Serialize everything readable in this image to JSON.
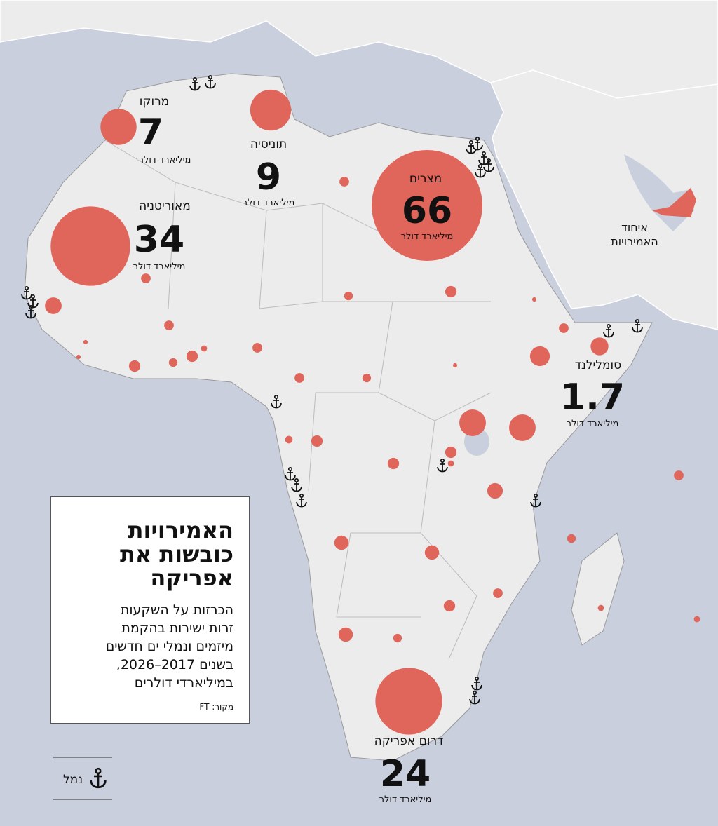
{
  "title_lines": [
    "האמירויות",
    "כובשות את",
    "אפריקה"
  ],
  "description_lines": [
    "הכרזות על השקעות",
    "זרות ישירות בהקמת",
    "מיזמים ונמלי ים חדשים",
    "בשנים 2017–2026,",
    "במיליארדי דולרים"
  ],
  "source": "מקור: FT",
  "legend_port": "נמל",
  "uae_label_lines": [
    "איחוד",
    "האמירויות"
  ],
  "countries": [
    {
      "name": "מרוקו",
      "value": 7,
      "unit": "מיליארד דולר"
    },
    {
      "name": "תוניסיה",
      "value": 9,
      "unit": "מיליארד דולר"
    },
    {
      "name": "מצרים",
      "value": 66,
      "unit": "מיליארד דולר"
    },
    {
      "name": "מאוריטניה",
      "value": 34,
      "unit": "מיליארד דולר"
    },
    {
      "name": "סומלילנד",
      "value": 1.7,
      "unit": "מיליארד דולר"
    },
    {
      "name": "דרום אפריקה",
      "value": 24,
      "unit": "מיליארד דולר"
    }
  ],
  "other_investments": [
    0.5,
    1.5,
    0.5,
    0.4,
    0.7,
    0.5,
    0.1,
    2.1,
    0.1,
    0.5,
    0.1,
    0.1,
    0.7,
    0.4,
    0.7,
    0.2,
    0.5,
    0.5,
    0.4,
    3.8,
    3.8,
    0.3,
    0.7,
    0.7,
    0.7,
    0.2,
    1.3,
    1.1,
    1.1,
    0.5,
    0.7,
    1.1,
    0.4,
    0.5,
    0.4,
    0.2,
    0.2
  ]
}
